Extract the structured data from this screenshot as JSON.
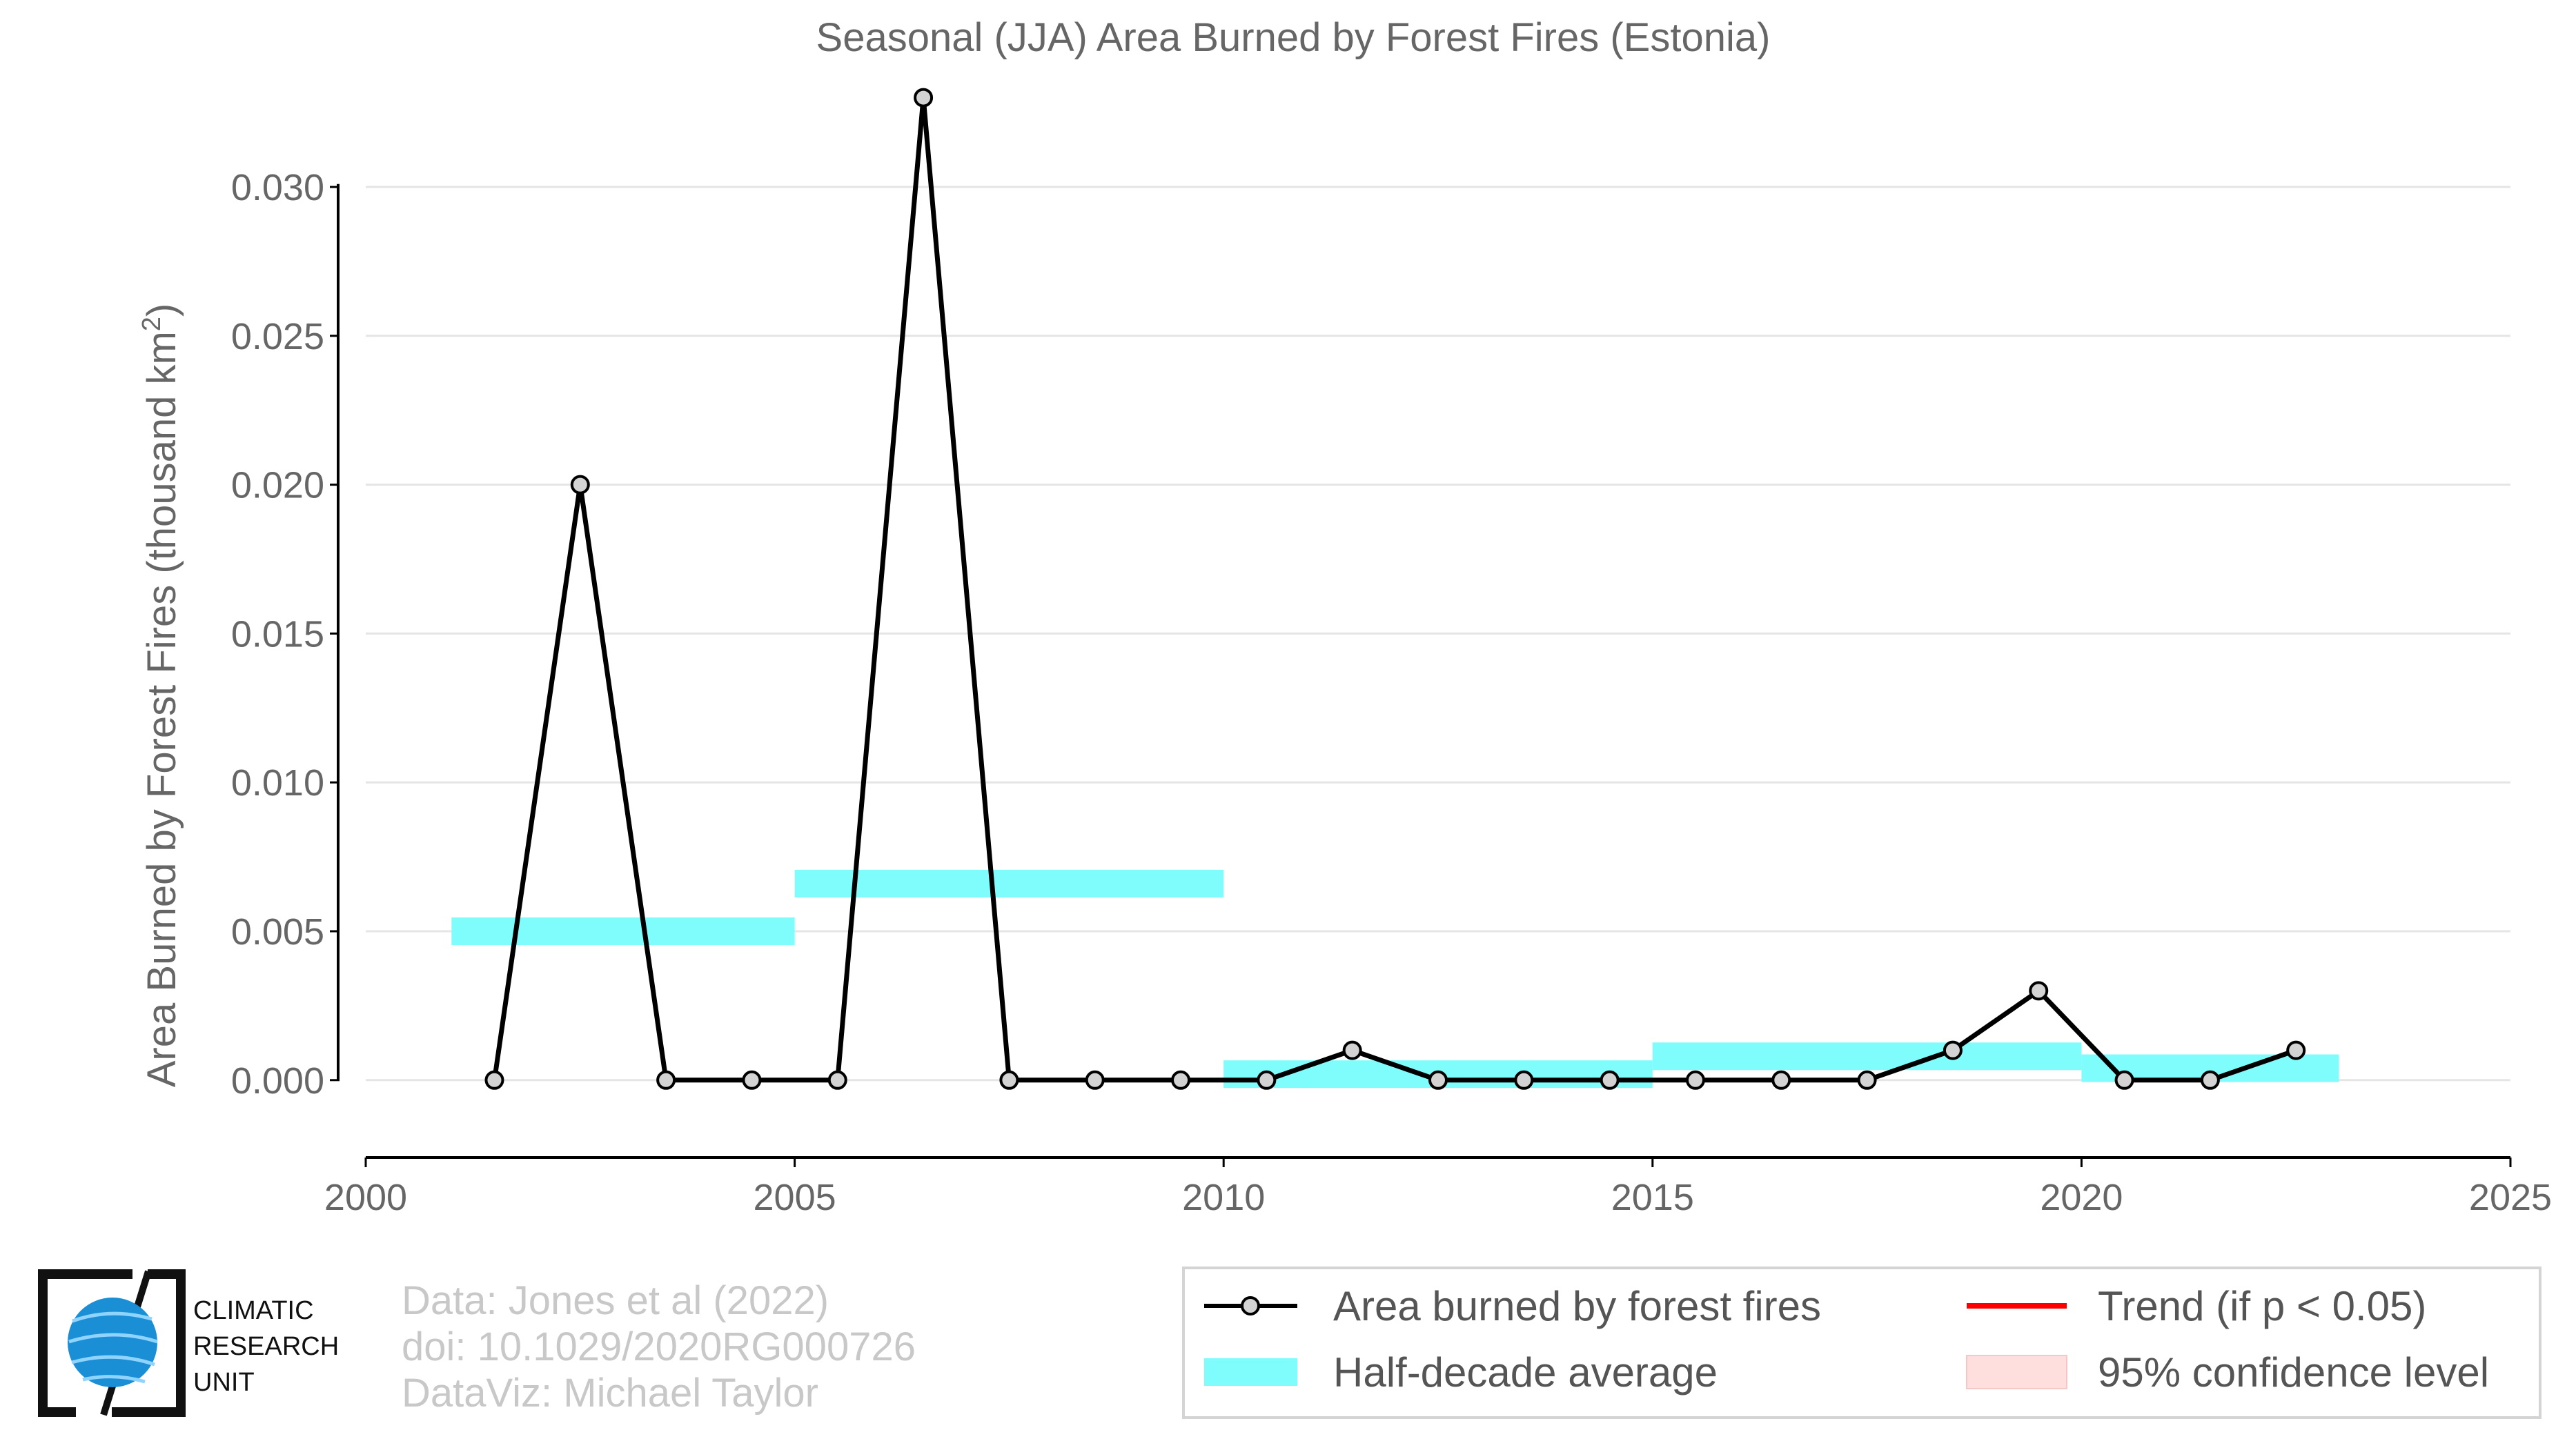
{
  "chart_data": {
    "type": "line",
    "title": "Seasonal (JJA) Area Burned by Forest Fires (Estonia)",
    "ylabel_main": "Area Burned by Forest Fires (thousand km",
    "ylabel_sup": "2",
    "ylabel_close": ")",
    "xlim": [
      2000,
      2025
    ],
    "ylim": [
      -0.0026,
      0.0335
    ],
    "x_ticks": [
      2000,
      2005,
      2010,
      2015,
      2020,
      2025
    ],
    "x_tick_labels": [
      "2000",
      "2005",
      "2010",
      "2015",
      "2020",
      "2025"
    ],
    "y_ticks": [
      0.0,
      0.005,
      0.01,
      0.015,
      0.02,
      0.025,
      0.03
    ],
    "y_tick_labels": [
      "0.000",
      "0.005",
      "0.010",
      "0.015",
      "0.020",
      "0.025",
      "0.030"
    ],
    "grid": "horizontal",
    "series": [
      {
        "name": "Area burned by forest fires",
        "x": [
          2001.5,
          2002.5,
          2003.5,
          2004.5,
          2005.5,
          2006.5,
          2007.5,
          2008.5,
          2009.5,
          2010.5,
          2011.5,
          2012.5,
          2013.5,
          2014.5,
          2015.5,
          2016.5,
          2017.5,
          2018.5,
          2019.5,
          2020.5,
          2021.5,
          2022.5
        ],
        "y": [
          0.0,
          0.02,
          0.0,
          0.0,
          0.0,
          0.033,
          0.0,
          0.0,
          0.0,
          0.0,
          0.001,
          0.0,
          0.0,
          0.0,
          0.0,
          0.0,
          0.0,
          0.001,
          0.003,
          0.0,
          0.0,
          0.001
        ],
        "color": "#000000"
      }
    ],
    "half_decade_average": {
      "name": "Half-decade average",
      "color": "#7ffcfc",
      "segments": [
        {
          "x_start": 2001,
          "x_end": 2005,
          "value": 0.005
        },
        {
          "x_start": 2005,
          "x_end": 2010,
          "value": 0.0066
        },
        {
          "x_start": 2010,
          "x_end": 2015,
          "value": 0.0002
        },
        {
          "x_start": 2015,
          "x_end": 2020,
          "value": 0.0008
        },
        {
          "x_start": 2020,
          "x_end": 2023,
          "value": 0.0004
        }
      ]
    },
    "legend": {
      "placement": "bottom-right",
      "items": [
        {
          "label": "Area burned by forest fires",
          "kind": "line-marker",
          "color": "#000000"
        },
        {
          "label": "Half-decade average",
          "kind": "band",
          "color": "#7ffcfc"
        },
        {
          "label": "Trend (if p < 0.05)",
          "kind": "line",
          "color": "#ff0000"
        },
        {
          "label": "95% confidence level",
          "kind": "patch",
          "color": "#ffdede"
        }
      ]
    }
  },
  "credits": {
    "line1": "Data: Jones et al (2022)",
    "line2": "doi: 10.1029/2020RG000726",
    "line3": "DataViz: Michael Taylor"
  },
  "logo": {
    "line1": "CLIMATIC",
    "line2": "RESEARCH",
    "line3": "UNIT",
    "globe_color": "#1a8fd6"
  }
}
